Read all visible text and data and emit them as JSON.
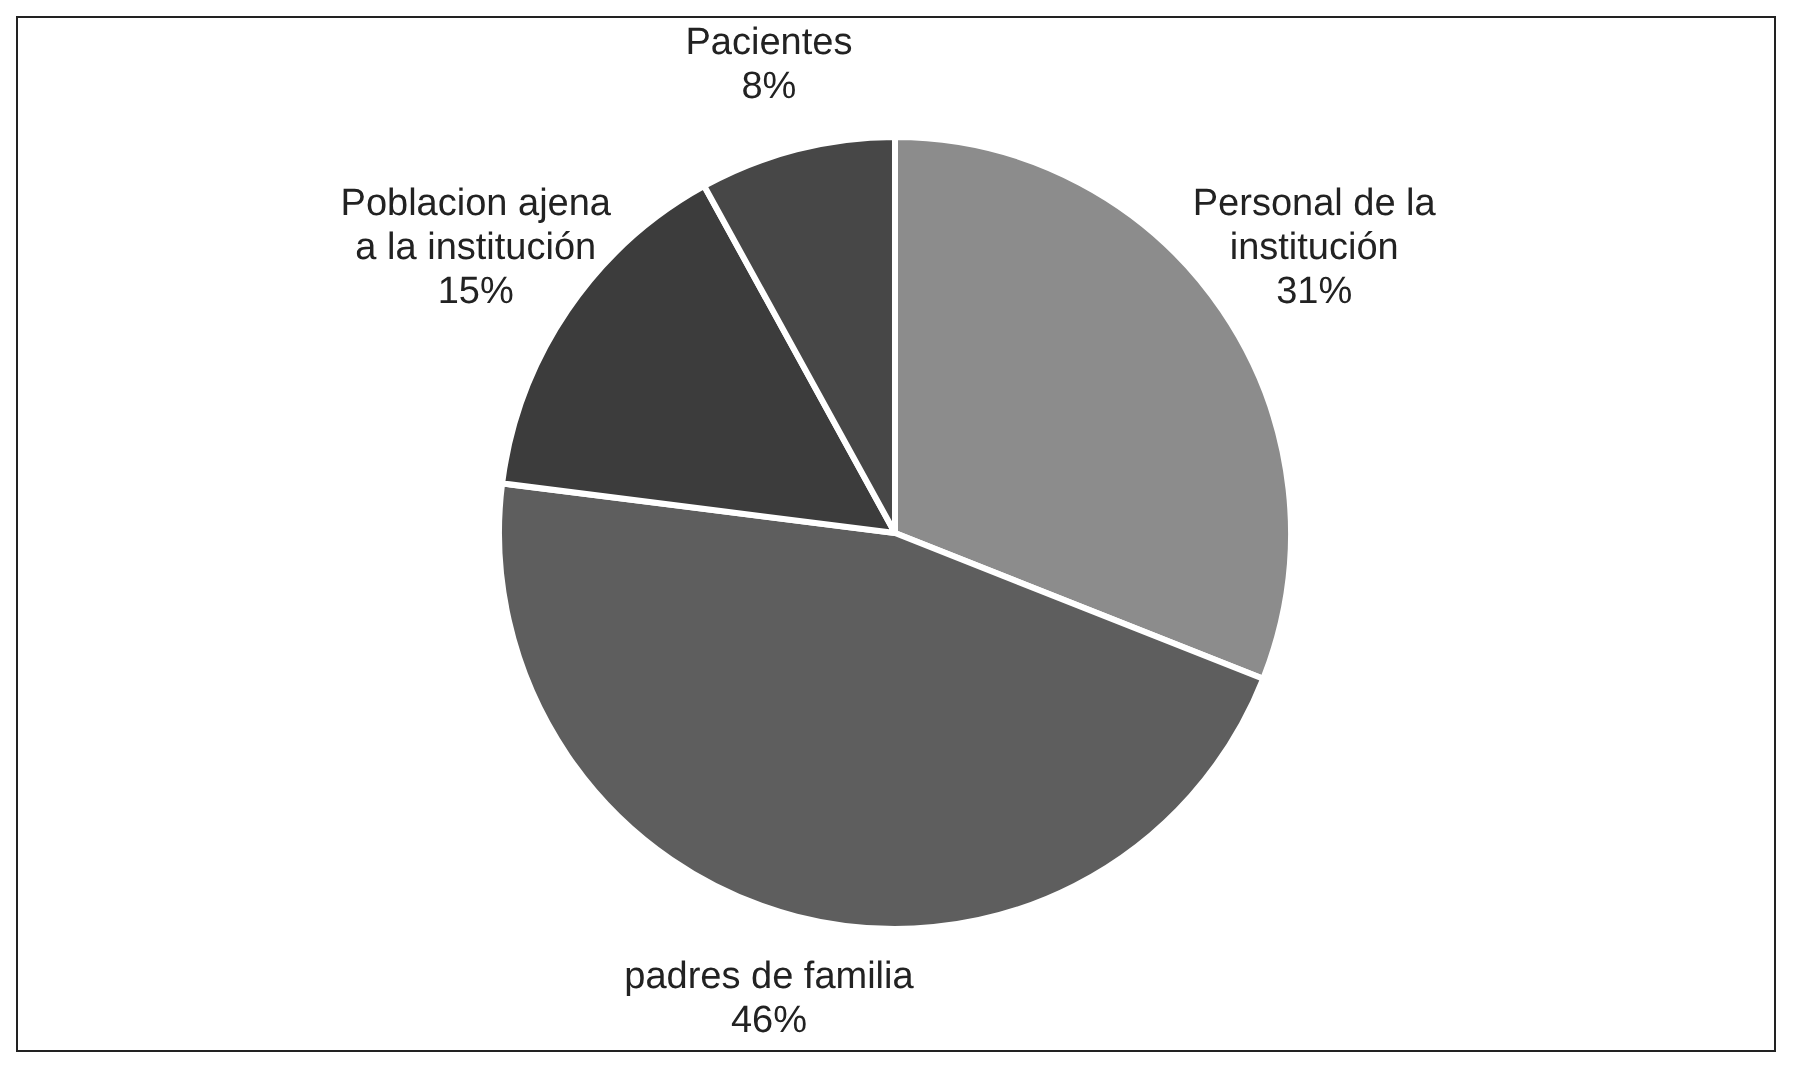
{
  "chart_data": {
    "type": "pie",
    "categories": [
      "Personal de la institución",
      "padres de familia",
      "Poblacion ajena a la institución",
      "Pacientes"
    ],
    "values": [
      31,
      46,
      15,
      8
    ],
    "value_labels": [
      "31%",
      "46%",
      "15%",
      "8%"
    ],
    "colors": [
      "#8c8c8c",
      "#5e5e5e",
      "#3c3c3c",
      "#474747"
    ],
    "legend": false
  }
}
